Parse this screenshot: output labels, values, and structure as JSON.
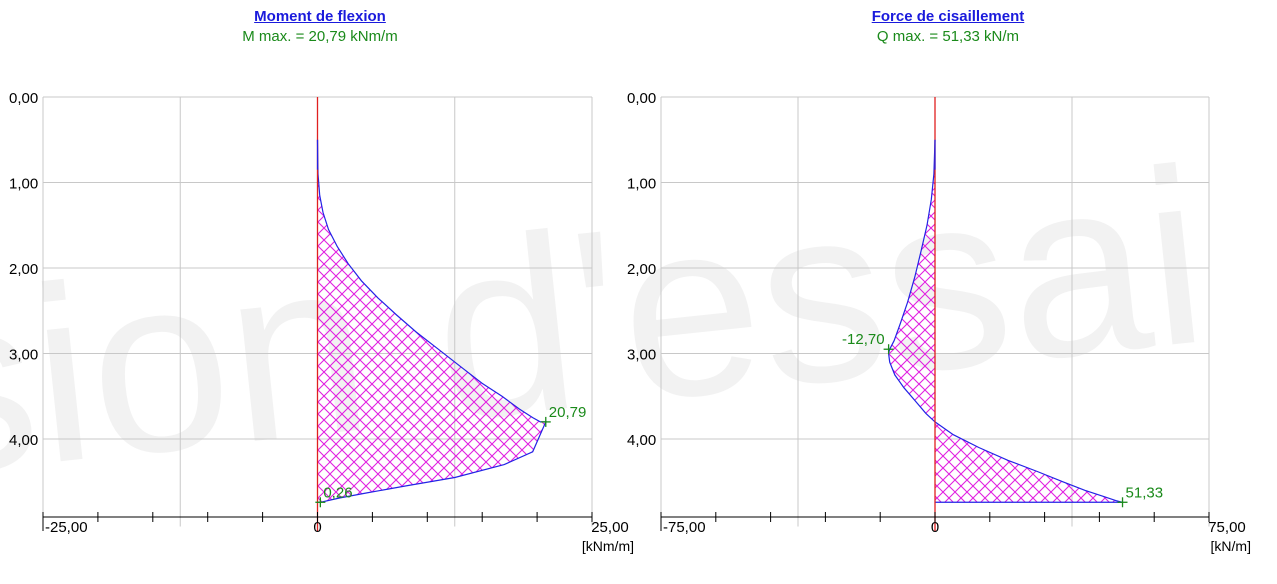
{
  "watermark": {
    "text": "Version d'essai"
  },
  "chart_data": [
    {
      "type": "area",
      "title": "Moment de flexion",
      "subtitle": "M max. = 20,79 kNm/m",
      "unit": "[kNm/m]",
      "xlim": [
        -25,
        25
      ],
      "ylim": [
        0,
        5.0
      ],
      "x_ticks": [
        -25,
        -20,
        -15,
        -10,
        -5,
        0,
        5,
        10,
        15,
        20,
        25
      ],
      "x_tick_labels": [
        {
          "value": -25,
          "label": "-25,00"
        },
        {
          "value": 0,
          "label": "0"
        },
        {
          "value": 25,
          "label": "25,00"
        }
      ],
      "y_ticks": [
        0,
        1,
        2,
        3,
        4
      ],
      "y_tick_labels": [
        "0,00",
        "1,00",
        "2,00",
        "3,00",
        "4,00"
      ],
      "x_gridlines": [
        -25,
        -12.5,
        0,
        12.5,
        25
      ],
      "y_gridlines": [
        0,
        1,
        2,
        3,
        4
      ],
      "series": [
        {
          "x": [
            0,
            0.05,
            0.2,
            0.5,
            1.0,
            1.8,
            2.8,
            4.0,
            5.5,
            7.2,
            9.0,
            11.0,
            13.0,
            15.0,
            16.8,
            18.4,
            19.6,
            20.3,
            20.79,
            19.6,
            17.0,
            12.5,
            8.0,
            4.5,
            2.0,
            0.26,
            0
          ],
          "y": [
            0.5,
            0.9,
            1.15,
            1.35,
            1.55,
            1.75,
            1.95,
            2.15,
            2.35,
            2.55,
            2.75,
            2.95,
            3.15,
            3.35,
            3.5,
            3.65,
            3.75,
            3.8,
            3.8,
            4.15,
            4.3,
            4.45,
            4.55,
            4.63,
            4.69,
            4.74,
            4.74
          ]
        }
      ],
      "annotations": [
        {
          "x": 20.79,
          "y": 3.8,
          "label": "20,79"
        },
        {
          "x": 0.26,
          "y": 4.74,
          "label": "0,26"
        }
      ]
    },
    {
      "type": "area",
      "title": "Force de cisaillement",
      "subtitle": "Q max. = 51,33 kN/m",
      "unit": "[kN/m]",
      "xlim": [
        -75,
        75
      ],
      "ylim": [
        0,
        5.0
      ],
      "x_ticks": [
        -75,
        -60,
        -45,
        -30,
        -15,
        0,
        15,
        30,
        45,
        60,
        75
      ],
      "x_tick_labels": [
        {
          "value": -75,
          "label": "-75,00"
        },
        {
          "value": 0,
          "label": "0"
        },
        {
          "value": 75,
          "label": "75,00"
        }
      ],
      "y_ticks": [
        0,
        1,
        2,
        3,
        4
      ],
      "y_tick_labels": [
        "0,00",
        "1,00",
        "2,00",
        "3,00",
        "4,00"
      ],
      "x_gridlines": [
        -75,
        -37.5,
        0,
        37.5,
        75
      ],
      "y_gridlines": [
        0,
        1,
        2,
        3,
        4
      ],
      "series": [
        {
          "x": [
            0,
            -0.3,
            -1.0,
            -2.2,
            -3.8,
            -5.5,
            -7.5,
            -9.5,
            -11.2,
            -12.4,
            -12.7,
            -12.4,
            -11.0,
            -8.5,
            -5.5,
            -2.5,
            0,
            5.0,
            12.0,
            20.0,
            28.0,
            35.0,
            41.0,
            46.0,
            49.5,
            51.33,
            0
          ],
          "y": [
            0.5,
            0.9,
            1.2,
            1.5,
            1.8,
            2.1,
            2.4,
            2.65,
            2.85,
            2.95,
            3.0,
            3.1,
            3.25,
            3.4,
            3.55,
            3.7,
            3.8,
            3.95,
            4.1,
            4.25,
            4.38,
            4.5,
            4.6,
            4.67,
            4.72,
            4.74,
            4.74
          ]
        }
      ],
      "annotations": [
        {
          "x": -12.7,
          "y": 2.95,
          "label": "-12,70"
        },
        {
          "x": 51.33,
          "y": 4.74,
          "label": "51,33"
        }
      ]
    }
  ]
}
